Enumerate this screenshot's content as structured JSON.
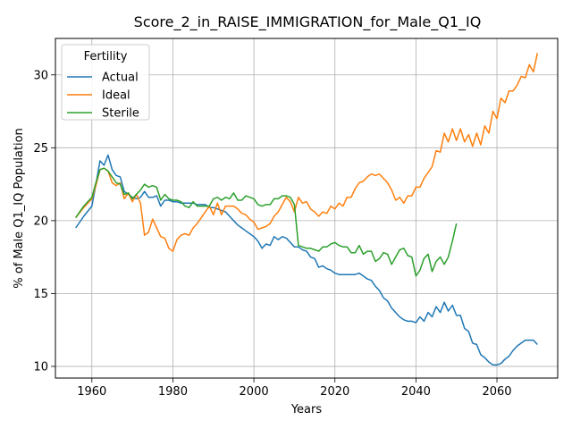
{
  "chart_data": {
    "type": "line",
    "title": "Score_2_in_RAISE_IMMIGRATION_for_Male_Q1_IQ",
    "xlabel": "Years",
    "ylabel": "% of Male Q1_IQ Population",
    "xlim": [
      1951,
      2075
    ],
    "ylim": [
      9.2,
      32.5
    ],
    "xticks": [
      1960,
      1980,
      2000,
      2020,
      2040,
      2060
    ],
    "yticks": [
      10,
      15,
      20,
      25,
      30
    ],
    "grid": true,
    "legend": {
      "title": "Fertility",
      "placement": "top-left"
    },
    "series": [
      {
        "name": "Actual",
        "color": "#1f77b4",
        "x": [
          1956,
          1958,
          1960,
          1961,
          1962,
          1963,
          1964,
          1965,
          1966,
          1967,
          1968,
          1969,
          1970,
          1971,
          1972,
          1973,
          1974,
          1975,
          1976,
          1977,
          1978,
          1979,
          1980,
          1981,
          1982,
          1983,
          1984,
          1985,
          1986,
          1987,
          1988,
          1989,
          1990,
          1991,
          1992,
          1993,
          1994,
          1995,
          1996,
          1997,
          1998,
          1999,
          2000,
          2001,
          2002,
          2003,
          2004,
          2005,
          2006,
          2007,
          2008,
          2009,
          2010,
          2011,
          2012,
          2013,
          2014,
          2015,
          2016,
          2017,
          2018,
          2019,
          2020,
          2021,
          2022,
          2023,
          2024,
          2025,
          2026,
          2027,
          2028,
          2029,
          2030,
          2031,
          2032,
          2033,
          2034,
          2035,
          2036,
          2037,
          2038,
          2039,
          2040,
          2041,
          2042,
          2043,
          2044,
          2045,
          2046,
          2047,
          2048,
          2049,
          2050,
          2051,
          2052,
          2053,
          2054,
          2055,
          2056,
          2057,
          2058,
          2059,
          2060,
          2061,
          2062,
          2063,
          2064,
          2065,
          2066,
          2067,
          2068,
          2069,
          2070
        ],
        "y": [
          19.5,
          20.3,
          21.0,
          22.5,
          24.1,
          23.8,
          24.5,
          23.5,
          23.1,
          23.0,
          22.0,
          21.8,
          21.6,
          21.5,
          21.6,
          22.0,
          21.6,
          21.6,
          21.7,
          21.0,
          21.4,
          21.4,
          21.3,
          21.3,
          21.2,
          21.2,
          21.2,
          21.2,
          21.1,
          21.1,
          21.1,
          20.9,
          20.9,
          20.8,
          20.7,
          20.6,
          20.3,
          20.0,
          19.7,
          19.5,
          19.3,
          19.1,
          18.9,
          18.6,
          18.1,
          18.4,
          18.3,
          18.9,
          18.7,
          18.9,
          18.8,
          18.5,
          18.2,
          18.2,
          18.0,
          17.9,
          17.5,
          17.4,
          16.8,
          16.9,
          16.7,
          16.6,
          16.4,
          16.3,
          16.3,
          16.3,
          16.3,
          16.3,
          16.4,
          16.2,
          16.0,
          15.9,
          15.5,
          15.2,
          14.7,
          14.5,
          14.0,
          13.7,
          13.4,
          13.2,
          13.1,
          13.1,
          13.0,
          13.4,
          13.1,
          13.7,
          13.4,
          14.1,
          13.7,
          14.4,
          13.8,
          14.2,
          13.5,
          13.5,
          12.6,
          12.4,
          11.6,
          11.5,
          10.8,
          10.6,
          10.3,
          10.1,
          10.1,
          10.2,
          10.5,
          10.7,
          11.1,
          11.4,
          11.6,
          11.8,
          11.8,
          11.8,
          11.5
        ]
      },
      {
        "name": "Ideal",
        "color": "#ff7f0e",
        "x": [
          1956,
          1958,
          1960,
          1961,
          1962,
          1963,
          1964,
          1965,
          1966,
          1967,
          1968,
          1969,
          1970,
          1971,
          1972,
          1973,
          1974,
          1975,
          1976,
          1977,
          1978,
          1979,
          1980,
          1981,
          1982,
          1983,
          1984,
          1985,
          1986,
          1987,
          1988,
          1989,
          1990,
          1991,
          1992,
          1993,
          1994,
          1995,
          1996,
          1997,
          1998,
          1999,
          2000,
          2001,
          2002,
          2003,
          2004,
          2005,
          2006,
          2007,
          2008,
          2009,
          2010,
          2011,
          2012,
          2013,
          2014,
          2015,
          2016,
          2017,
          2018,
          2019,
          2020,
          2021,
          2022,
          2023,
          2024,
          2025,
          2026,
          2027,
          2028,
          2029,
          2030,
          2031,
          2032,
          2033,
          2034,
          2035,
          2036,
          2037,
          2038,
          2039,
          2040,
          2041,
          2042,
          2043,
          2044,
          2045,
          2046,
          2047,
          2048,
          2049,
          2050,
          2051,
          2052,
          2053,
          2054,
          2055,
          2056,
          2057,
          2058,
          2059,
          2060,
          2061,
          2062,
          2063,
          2064,
          2065,
          2066,
          2067,
          2068,
          2069,
          2070
        ],
        "y": [
          20.2,
          20.9,
          21.5,
          22.4,
          23.5,
          23.6,
          23.4,
          22.6,
          22.4,
          22.6,
          21.5,
          21.9,
          21.3,
          21.8,
          21.2,
          19.0,
          19.2,
          20.1,
          19.5,
          18.9,
          18.8,
          18.1,
          17.9,
          18.7,
          19.0,
          19.1,
          19.0,
          19.5,
          19.8,
          20.2,
          20.6,
          21.0,
          20.4,
          21.2,
          20.4,
          21.0,
          21.0,
          21.0,
          20.8,
          20.5,
          20.4,
          20.1,
          19.9,
          19.4,
          19.5,
          19.6,
          19.8,
          20.3,
          20.6,
          21.1,
          21.6,
          21.3,
          20.6,
          21.6,
          21.2,
          21.3,
          20.8,
          20.6,
          20.3,
          20.6,
          20.5,
          21.0,
          20.8,
          21.2,
          21.0,
          21.6,
          21.6,
          22.2,
          22.6,
          22.7,
          23.0,
          23.2,
          23.1,
          23.2,
          22.9,
          22.6,
          22.1,
          21.4,
          21.6,
          21.2,
          21.7,
          21.7,
          22.3,
          22.3,
          22.9,
          23.3,
          23.7,
          24.8,
          24.7,
          26.0,
          25.4,
          26.3,
          25.5,
          26.3,
          25.4,
          25.9,
          25.1,
          26.0,
          25.2,
          26.5,
          26.0,
          27.5,
          27.0,
          28.4,
          28.1,
          28.9,
          28.9,
          29.3,
          29.9,
          29.8,
          30.7,
          30.2,
          31.5
        ]
      },
      {
        "name": "Sterile",
        "color": "#2ca02c",
        "x": [
          1956,
          1958,
          1960,
          1961,
          1962,
          1963,
          1964,
          1965,
          1966,
          1967,
          1968,
          1969,
          1970,
          1971,
          1972,
          1973,
          1974,
          1975,
          1976,
          1977,
          1978,
          1979,
          1980,
          1981,
          1982,
          1983,
          1984,
          1985,
          1986,
          1987,
          1988,
          1989,
          1990,
          1991,
          1992,
          1993,
          1994,
          1995,
          1996,
          1997,
          1998,
          1999,
          2000,
          2001,
          2002,
          2003,
          2004,
          2005,
          2006,
          2007,
          2008,
          2009,
          2010,
          2011,
          2012,
          2013,
          2014,
          2015,
          2016,
          2017,
          2018,
          2019,
          2020,
          2021,
          2022,
          2023,
          2024,
          2025,
          2026,
          2027,
          2028,
          2029,
          2030,
          2031,
          2032,
          2033,
          2034,
          2035,
          2036,
          2037,
          2038,
          2039,
          2040,
          2041,
          2042,
          2043,
          2044,
          2045,
          2046,
          2047,
          2048,
          2049,
          2050
        ],
        "y": [
          20.2,
          21.0,
          21.6,
          22.6,
          23.5,
          23.6,
          23.4,
          23.0,
          22.6,
          22.5,
          21.8,
          21.9,
          21.5,
          21.8,
          22.1,
          22.5,
          22.3,
          22.4,
          22.3,
          21.4,
          21.8,
          21.5,
          21.4,
          21.4,
          21.3,
          21.0,
          20.9,
          21.3,
          21.0,
          21.0,
          21.0,
          21.0,
          21.5,
          21.6,
          21.4,
          21.6,
          21.5,
          21.9,
          21.4,
          21.4,
          21.7,
          21.6,
          21.5,
          21.1,
          21.0,
          21.1,
          21.1,
          21.5,
          21.5,
          21.7,
          21.7,
          21.6,
          21.1,
          18.3,
          18.2,
          18.1,
          18.1,
          18.0,
          17.9,
          18.2,
          18.2,
          18.4,
          18.5,
          18.3,
          18.2,
          18.2,
          17.8,
          17.8,
          18.3,
          17.7,
          17.9,
          17.9,
          17.2,
          17.4,
          17.8,
          17.7,
          17.0,
          17.5,
          18.0,
          18.1,
          17.6,
          17.5,
          16.2,
          16.6,
          17.4,
          17.7,
          16.5,
          17.2,
          17.5,
          17.0,
          17.5,
          18.6,
          19.8
        ]
      }
    ]
  }
}
